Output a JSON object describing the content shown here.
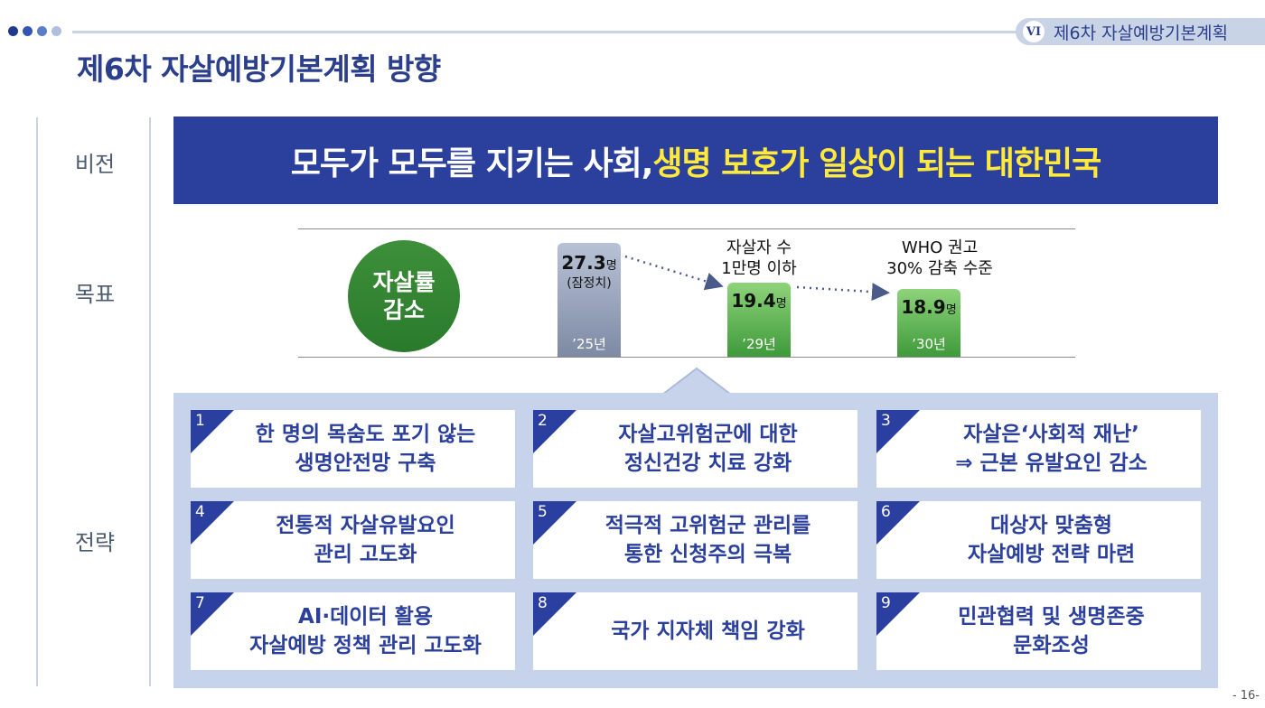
{
  "header": {
    "chapter_num": "VI",
    "chapter_title": "제6차 자살예방기본계획",
    "page_title": "제6차 자살예방기본계획 방향",
    "dot_colors": [
      "#1f3a8a",
      "#3455b0",
      "#5a7cc9",
      "#aebfdf"
    ]
  },
  "labels": {
    "vision": "비전",
    "goal": "목표",
    "strategy": "전략"
  },
  "vision": {
    "text_white": "모두가 모두를 지키는 사회, ",
    "text_yellow": "생명 보호가 일상이 되는 대한민국"
  },
  "goal": {
    "circle_line1": "자살률",
    "circle_line2": "감소",
    "bars": [
      {
        "year": "’25년",
        "value": "27.3",
        "unit": "명",
        "sub": "(잠정치)"
      },
      {
        "year": "’29년",
        "value": "19.4",
        "unit": "명",
        "note_line1": "자살자 수",
        "note_line2": "1만명 이하"
      },
      {
        "year": "’30년",
        "value": "18.9",
        "unit": "명",
        "note_line1": "WHO 권고",
        "note_line2": "30% 감축 수준"
      }
    ]
  },
  "strategies": [
    {
      "num": "1",
      "text": "한 명의 목숨도 포기 않는\n생명안전망 구축"
    },
    {
      "num": "2",
      "text": "자살고위험군에 대한\n정신건강 치료 강화"
    },
    {
      "num": "3",
      "text": "자살은‘사회적 재난’\n⇒ 근본 유발요인 감소"
    },
    {
      "num": "4",
      "text": "전통적 자살유발요인\n관리 고도화"
    },
    {
      "num": "5",
      "text": "적극적 고위험군 관리를\n통한 신청주의 극복"
    },
    {
      "num": "6",
      "text": "대상자 맞춤형\n자살예방 전략 마련"
    },
    {
      "num": "7",
      "text": "AI·데이터 활용\n자살예방 정책 관리 고도화"
    },
    {
      "num": "8",
      "text": "국가 지자체 책임 강화"
    },
    {
      "num": "9",
      "text": "민관협력 및 생명존중\n문화조성"
    }
  ],
  "page_number": "- 16-",
  "colors": {
    "navy": "#2b3f9c",
    "yellow": "#ffe93b",
    "green": "#3a8a36",
    "light_blue": "#c6d3ea"
  }
}
